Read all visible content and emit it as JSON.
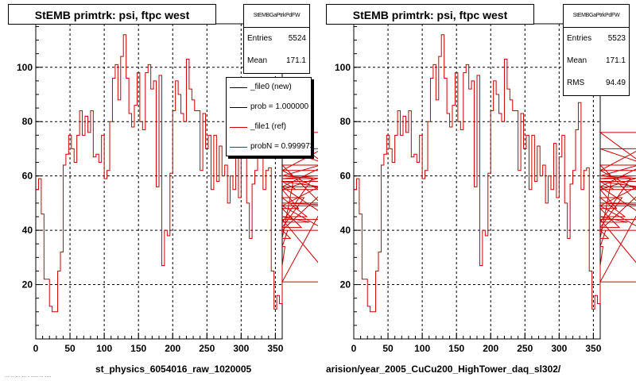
{
  "chart_data": [
    {
      "type": "line",
      "title": "StEMB primtrk: psi, ftpc west",
      "xlabel": "st_physics_6054016_raw_1020005",
      "ylabel": "",
      "xlim": [
        0,
        360
      ],
      "ylim": [
        0,
        116
      ],
      "x_ticks": [
        0,
        50,
        100,
        150,
        200,
        250,
        300,
        350
      ],
      "y_ticks": [
        20,
        40,
        60,
        80,
        100
      ],
      "grid": true,
      "stats": {
        "name": "StEMBGaPtrkPdFW",
        "entries_label": "Entries",
        "entries": "5524",
        "mean_label": "Mean",
        "mean": "171.1"
      },
      "legend": {
        "placement": "top-right",
        "entries": [
          {
            "label": "_file0 (new)",
            "color": "#000000"
          },
          {
            "label": "prob = 1.000000",
            "color": "#000000"
          },
          {
            "label": "_file1 (ref)",
            "color": "#cc0000"
          },
          {
            "label": "probN = 0.999973",
            "color": "#cc0000"
          }
        ]
      },
      "series": [
        {
          "color": "#cc0000",
          "bin_width": 4,
          "values": [
            55,
            59,
            46,
            22,
            22,
            12,
            10,
            10,
            25,
            32,
            64,
            68,
            75,
            70,
            65,
            75,
            84,
            75,
            82,
            76,
            84,
            67,
            68,
            65,
            75,
            59,
            62,
            80,
            96,
            101,
            88,
            104,
            112,
            96,
            83,
            78,
            86,
            98,
            80,
            77,
            98,
            101,
            92,
            95,
            56,
            97,
            27,
            40,
            38,
            61,
            84,
            95,
            90,
            83,
            80,
            103,
            92,
            88,
            84,
            84,
            62,
            83,
            70,
            75,
            55,
            75,
            58,
            71,
            60,
            64,
            50,
            60,
            55,
            72,
            52,
            67,
            75,
            50,
            37,
            57,
            62,
            77,
            87,
            55,
            62,
            63,
            25,
            11,
            16,
            13,
            27,
            34,
            40,
            37,
            58,
            55,
            48,
            41,
            52,
            45,
            43,
            59,
            60,
            60,
            64,
            49,
            40,
            56,
            44,
            21,
            58,
            55,
            62,
            50,
            49,
            62,
            76,
            56,
            70,
            60,
            58
          ]
        }
      ]
    },
    {
      "type": "line",
      "title": "StEMB primtrk: psi, ftpc west",
      "xlabel": "arision/year_2005_CuCu200_HighTower_daq_sl302/",
      "ylabel": "",
      "xlim": [
        0,
        360
      ],
      "ylim": [
        0,
        116
      ],
      "x_ticks": [
        0,
        50,
        100,
        150,
        200,
        250,
        300,
        350
      ],
      "y_ticks": [
        20,
        40,
        60,
        80,
        100
      ],
      "grid": true,
      "stats": {
        "name": "StEMBGaPtrkPdFW",
        "entries_label": "Entries",
        "entries": "5523",
        "mean_label": "Mean",
        "mean": "171.1",
        "rms_label": "RMS",
        "rms": "94.49"
      },
      "series": [
        {
          "color": "#cc0000",
          "bin_width": 4,
          "values": [
            55,
            59,
            46,
            22,
            22,
            12,
            10,
            10,
            25,
            32,
            64,
            68,
            75,
            70,
            65,
            75,
            84,
            75,
            82,
            76,
            84,
            67,
            68,
            65,
            75,
            59,
            62,
            80,
            96,
            101,
            88,
            104,
            112,
            96,
            83,
            78,
            86,
            98,
            80,
            77,
            98,
            101,
            92,
            95,
            56,
            97,
            27,
            40,
            38,
            61,
            84,
            95,
            90,
            83,
            80,
            103,
            92,
            88,
            84,
            84,
            62,
            83,
            70,
            75,
            55,
            75,
            58,
            71,
            60,
            64,
            50,
            60,
            55,
            72,
            52,
            67,
            75,
            50,
            37,
            57,
            62,
            77,
            87,
            55,
            62,
            63,
            25,
            11,
            16,
            13,
            27,
            34,
            40,
            37,
            58,
            55,
            48,
            41,
            52,
            45,
            43,
            59,
            60,
            60,
            64,
            49,
            40,
            56,
            44,
            21,
            58,
            55,
            62,
            50,
            49,
            62,
            76,
            56,
            70,
            60,
            58
          ]
        }
      ]
    }
  ],
  "footer": {
    "tiny_caption": "... .. ... ... . ..... .. ...."
  }
}
